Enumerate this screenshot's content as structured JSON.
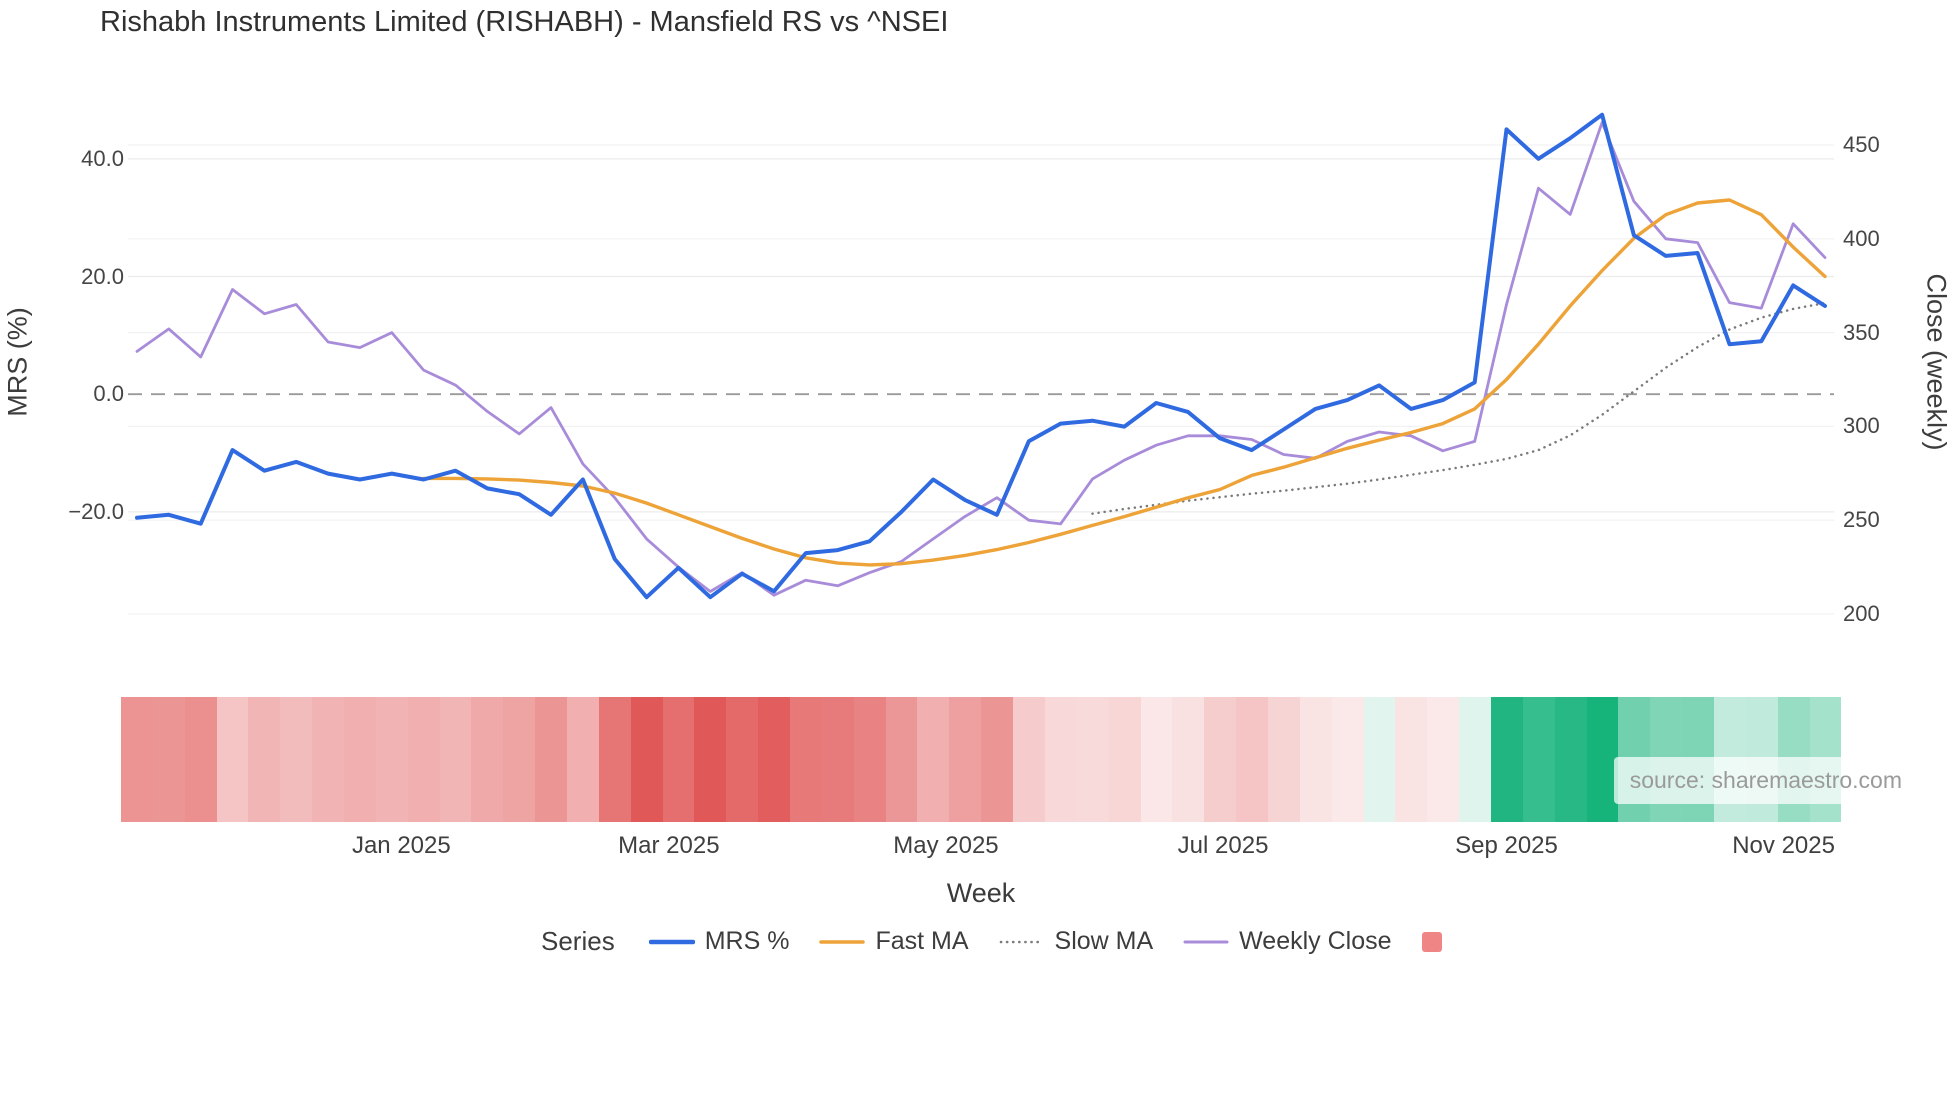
{
  "source_note": "source: sharemaestro.com",
  "legend": {
    "title": "Series",
    "items": [
      {
        "label": "MRS %",
        "swatch": "line",
        "color": "#2f6ae0",
        "width": 4.5
      },
      {
        "label": "Fast MA",
        "swatch": "line",
        "color": "#eda338",
        "width": 3.5
      },
      {
        "label": "Slow MA",
        "swatch": "dotted-line",
        "color": "#7a7a7a",
        "width": 2.6
      },
      {
        "label": "Weekly Close",
        "swatch": "line",
        "color": "#a88cd9",
        "width": 3
      },
      {
        "label": "",
        "swatch": "square",
        "color": "#ef8585",
        "width": 0
      }
    ]
  },
  "chart_data": {
    "type": "line",
    "title": "Rishabh Instruments Limited (RISHABH) - Mansfield RS vs ^NSEI",
    "x_axis": {
      "title": "Week",
      "tick_labels": [
        "Jan 2025",
        "Mar 2025",
        "May 2025",
        "Jul 2025",
        "Sep 2025",
        "Nov 2025"
      ],
      "tick_week_indices": [
        8.3,
        16.7,
        25.4,
        34.1,
        43.0,
        51.7
      ]
    },
    "y_left_axis": {
      "title": "MRS (%)",
      "tick_labels": [
        "40.0",
        "20.0",
        "0.0",
        "−20.0"
      ],
      "tick_values": [
        40,
        20,
        0,
        -20
      ],
      "range": [
        -45,
        50
      ],
      "zero_line_dashed": true
    },
    "y_right_axis": {
      "title": "Close (weekly)",
      "tick_labels": [
        "450",
        "400",
        "350",
        "300",
        "250",
        "200"
      ],
      "tick_values": [
        450,
        400,
        350,
        300,
        250,
        200
      ],
      "range": [
        176,
        474
      ]
    },
    "x_weeks": [
      "2024-11-04",
      "2024-11-11",
      "2024-11-18",
      "2024-11-25",
      "2024-12-02",
      "2024-12-09",
      "2024-12-16",
      "2024-12-23",
      "2024-12-30",
      "2025-01-06",
      "2025-01-13",
      "2025-01-20",
      "2025-01-27",
      "2025-02-03",
      "2025-02-10",
      "2025-02-17",
      "2025-02-24",
      "2025-03-03",
      "2025-03-10",
      "2025-03-17",
      "2025-03-24",
      "2025-03-31",
      "2025-04-07",
      "2025-04-14",
      "2025-04-21",
      "2025-04-28",
      "2025-05-05",
      "2025-05-12",
      "2025-05-19",
      "2025-05-26",
      "2025-06-02",
      "2025-06-09",
      "2025-06-16",
      "2025-06-23",
      "2025-06-30",
      "2025-07-07",
      "2025-07-14",
      "2025-07-21",
      "2025-07-28",
      "2025-08-04",
      "2025-08-11",
      "2025-08-18",
      "2025-08-25",
      "2025-09-01",
      "2025-09-08",
      "2025-09-15",
      "2025-09-22",
      "2025-09-29",
      "2025-10-06",
      "2025-10-13",
      "2025-10-20",
      "2025-10-27",
      "2025-11-03",
      "2025-11-10"
    ],
    "series": [
      {
        "name": "MRS %",
        "axis": "left",
        "color": "#2f6ae0",
        "style": "solid",
        "width": 4,
        "values": [
          -21,
          -20.5,
          -22,
          -9.5,
          -13,
          -11.5,
          -13.5,
          -14.5,
          -13.5,
          -14.5,
          -13,
          -16,
          -17,
          -20.5,
          -14.5,
          -28,
          -34.5,
          -29.5,
          -34.5,
          -30.5,
          -33.5,
          -27,
          -26.5,
          -25,
          -20,
          -14.5,
          -18,
          -20.5,
          -8,
          -5,
          -4.5,
          -5.5,
          -1.5,
          -3,
          -7.5,
          -9.5,
          -6,
          -2.5,
          -1,
          1.5,
          -2.5,
          -1,
          2,
          45,
          40,
          43.5,
          47.5,
          27,
          23.5,
          24,
          8.5,
          9,
          18.5,
          15
        ]
      },
      {
        "name": "Fast MA",
        "axis": "left",
        "color": "#eda338",
        "style": "solid",
        "width": 3.4,
        "values": [
          null,
          null,
          null,
          null,
          null,
          null,
          null,
          null,
          null,
          -14.3,
          -14.3,
          -14.4,
          -14.6,
          -15,
          -15.6,
          -16.8,
          -18.5,
          -20.5,
          -22.5,
          -24.5,
          -26.3,
          -27.8,
          -28.7,
          -29,
          -28.8,
          -28.2,
          -27.4,
          -26.4,
          -25.2,
          -23.8,
          -22.3,
          -20.8,
          -19.2,
          -17.6,
          -16.2,
          -13.8,
          -12.4,
          -10.8,
          -9.2,
          -7.8,
          -6.5,
          -5,
          -2.5,
          2.5,
          8.5,
          15,
          21,
          26.5,
          30.5,
          32.5,
          33,
          30.5,
          25,
          20
        ]
      },
      {
        "name": "Slow MA",
        "axis": "left",
        "color": "#7a7a7a",
        "style": "dotted",
        "width": 2.5,
        "values": [
          null,
          null,
          null,
          null,
          null,
          null,
          null,
          null,
          null,
          null,
          null,
          null,
          null,
          null,
          null,
          null,
          null,
          null,
          null,
          null,
          null,
          null,
          null,
          null,
          null,
          null,
          null,
          null,
          null,
          null,
          -20.3,
          -19.5,
          -18.8,
          -18.1,
          -17.5,
          -16.9,
          -16.4,
          -15.8,
          -15.2,
          -14.5,
          -13.7,
          -12.9,
          -12,
          -11,
          -9.5,
          -7,
          -3.5,
          0.5,
          4.5,
          8,
          11,
          13,
          14.5,
          15.5
        ]
      },
      {
        "name": "Weekly Close",
        "axis": "right",
        "color": "#a88cd9",
        "style": "solid",
        "width": 2.8,
        "values": [
          340,
          352,
          337,
          373,
          360,
          365,
          345,
          342,
          350,
          330,
          322,
          308,
          296,
          310,
          280,
          262,
          240,
          225,
          212,
          222,
          210,
          218,
          215,
          222,
          228,
          240,
          252,
          262,
          250,
          248,
          272,
          282,
          290,
          295,
          295,
          293,
          285,
          283,
          292,
          297,
          295,
          287,
          292,
          365,
          427,
          413,
          462,
          420,
          400,
          398,
          366,
          363,
          408,
          390
        ]
      }
    ],
    "heat_band": {
      "maps_series": "MRS %",
      "negative_base_color": "#e05252",
      "positive_base_color": "#14b27a",
      "note": "weekly strip tinted red when MRS negative, green when positive, intensity by magnitude"
    },
    "grid": true,
    "legend_position": "bottom"
  }
}
